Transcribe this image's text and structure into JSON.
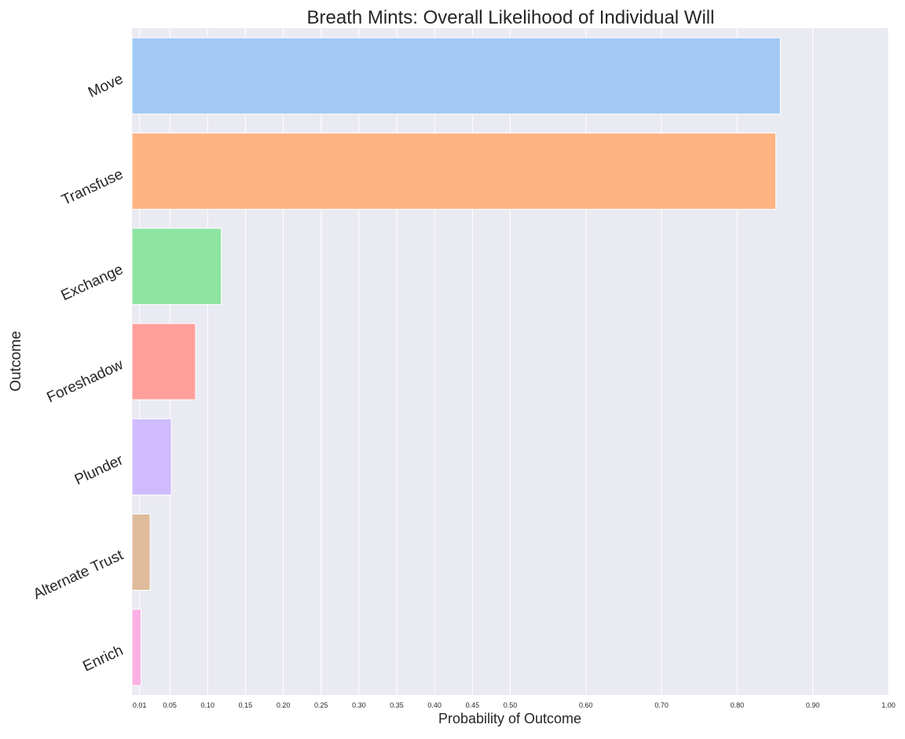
{
  "chart_data": {
    "type": "bar",
    "orientation": "horizontal",
    "title": "Breath Mints: Overall Likelihood of Individual Will",
    "xlabel": "Probability of Outcome",
    "ylabel": "Outcome",
    "categories": [
      "Move",
      "Transfuse",
      "Exchange",
      "Foreshadow",
      "Plunder",
      "Alternate Trust",
      "Enrich"
    ],
    "values": [
      0.857,
      0.851,
      0.118,
      0.084,
      0.052,
      0.024,
      0.012
    ],
    "colors": [
      "#a1c9f4",
      "#ffb482",
      "#8de5a1",
      "#ff9f9b",
      "#d0bbff",
      "#debb9b",
      "#fab0e4"
    ],
    "xticks": [
      0.01,
      0.05,
      0.1,
      0.15,
      0.2,
      0.25,
      0.3,
      0.35,
      0.4,
      0.45,
      0.5,
      0.6,
      0.7,
      0.8,
      0.9,
      1.0
    ],
    "xtick_labels": [
      "0.01",
      "0.05",
      "0.10",
      "0.15",
      "0.20",
      "0.25",
      "0.30",
      "0.35",
      "0.40",
      "0.45",
      "0.50",
      "0.60",
      "0.70",
      "0.80",
      "0.90",
      "1.00"
    ],
    "xlim": [
      0,
      1.0
    ],
    "grid": true,
    "background": "#eaeaf2"
  }
}
